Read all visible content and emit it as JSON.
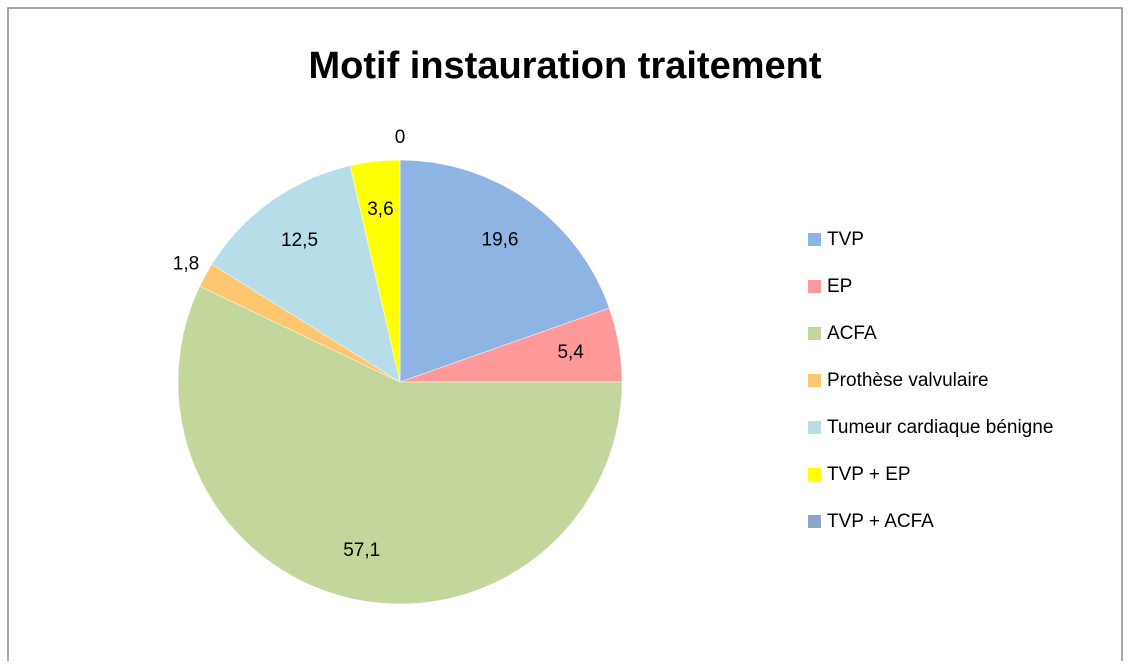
{
  "chart_data": {
    "type": "pie",
    "title": "Motif instauration traitement",
    "categories": [
      "TVP",
      "EP",
      "ACFA",
      "Prothèse valvulaire",
      "Tumeur cardiaque bénigne",
      "TVP + EP",
      "TVP + ACFA"
    ],
    "values": [
      19.6,
      5.4,
      57.1,
      1.8,
      12.5,
      3.6,
      0
    ],
    "value_labels": [
      "19,6",
      "5,4",
      "57,1",
      "1,8",
      "12,5",
      "3,6",
      "0"
    ],
    "colors": [
      "#8eb4e3",
      "#ff9999",
      "#c3d69b",
      "#ffc670",
      "#b7dde8",
      "#ffff00",
      "#8ea4cc"
    ],
    "legend": "right"
  }
}
